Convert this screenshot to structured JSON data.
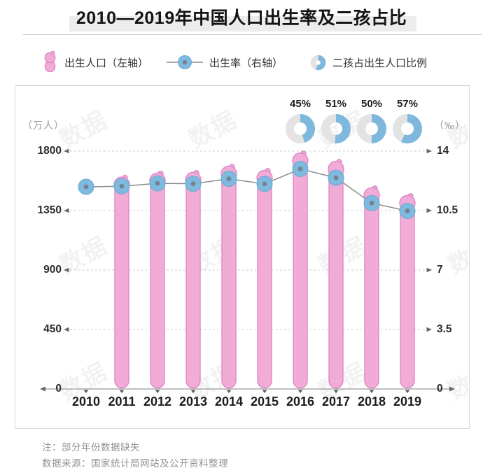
{
  "title": "2010—2019年中国人口出生率及二孩占比",
  "legend": [
    {
      "icon": "baby-icon",
      "label": "出生人口（左轴）"
    },
    {
      "icon": "line-marker-icon",
      "label": "出生率（右轴）"
    },
    {
      "icon": "donut-icon",
      "label": "二孩占出生人口比例"
    }
  ],
  "watermark": "数据",
  "notes": {
    "note": "注：部分年份数据缺失",
    "source": "数据来源：国家统计局网站及公开资料整理"
  },
  "colors": {
    "bar_fill": "#F2ABD7",
    "bar_stroke": "#DB8AC6",
    "marker_fill": "#7EBADF",
    "marker_stroke": "#6AA8D0",
    "marker_dot": "#77828D",
    "line": "#8C8C8C",
    "donut_blue": "#7EB8DD",
    "donut_gray": "#E3E3E3",
    "grid": "#C7C7C7",
    "axis": "#999999",
    "arrow": "#666666"
  },
  "chart_data": {
    "type": "combo",
    "categories": [
      "2010",
      "2011",
      "2012",
      "2013",
      "2014",
      "2015",
      "2016",
      "2017",
      "2018",
      "2019"
    ],
    "series": [
      {
        "name": "出生人口（左轴）",
        "type": "bar",
        "axis": "left",
        "unit": "万人",
        "values": [
          null,
          1604,
          1635,
          1640,
          1687,
          1655,
          1786,
          1723,
          1523,
          1465
        ]
      },
      {
        "name": "出生率（右轴）",
        "type": "line",
        "axis": "right",
        "unit": "‰",
        "values": [
          11.9,
          11.93,
          12.1,
          12.08,
          12.37,
          12.07,
          12.95,
          12.43,
          10.94,
          10.48
        ]
      },
      {
        "name": "二孩占出生人口比例",
        "type": "donut",
        "unit": "%",
        "values": [
          null,
          null,
          null,
          null,
          null,
          null,
          45,
          51,
          50,
          57
        ],
        "labels": [
          null,
          null,
          null,
          null,
          null,
          null,
          "45%",
          "51%",
          "50%",
          "57%"
        ]
      }
    ],
    "left_axis": {
      "label": "（万人）",
      "ticks": [
        0,
        450,
        900,
        1350,
        1800
      ],
      "range": [
        0,
        1800
      ]
    },
    "right_axis": {
      "label": "（‰）",
      "ticks": [
        0,
        3.5,
        7,
        10.5,
        14
      ],
      "range": [
        0,
        14
      ]
    },
    "grid": "horizontal dashed with end arrows",
    "legend_position": "top"
  }
}
